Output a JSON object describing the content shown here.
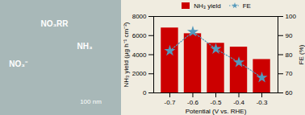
{
  "chart_data": {
    "type": "bar",
    "x_label": "Potential (V vs. RHE)",
    "y_label": "NH₃ yield (μg h⁻¹ cm⁻²)",
    "y2_label": "FE (%)",
    "x": [
      -0.7,
      -0.6,
      -0.5,
      -0.4,
      -0.3
    ],
    "xlim": [
      -0.77,
      -0.23
    ],
    "xticks": [
      -0.7,
      -0.6,
      -0.5,
      -0.4,
      -0.3
    ],
    "ylim": [
      0,
      8000
    ],
    "yticks": [
      0,
      2000,
      4000,
      6000,
      8000
    ],
    "y2lim": [
      60,
      100
    ],
    "y2ticks": [
      60,
      70,
      80,
      90,
      100
    ],
    "series": [
      {
        "name": "NH₃ yield",
        "type": "bar",
        "color": "#cc0000",
        "values": [
          6800,
          6200,
          5200,
          4800,
          3500
        ]
      },
      {
        "name": "FE",
        "type": "line",
        "axis": "y2",
        "color": "#5599bb",
        "line_style": "dotted",
        "marker": "star",
        "values": [
          82,
          92,
          83,
          76,
          68
        ]
      }
    ],
    "legend": "top",
    "annotations": [
      "NO₃RR",
      "NH₃",
      "NO₃⁻",
      "100 nm"
    ]
  }
}
